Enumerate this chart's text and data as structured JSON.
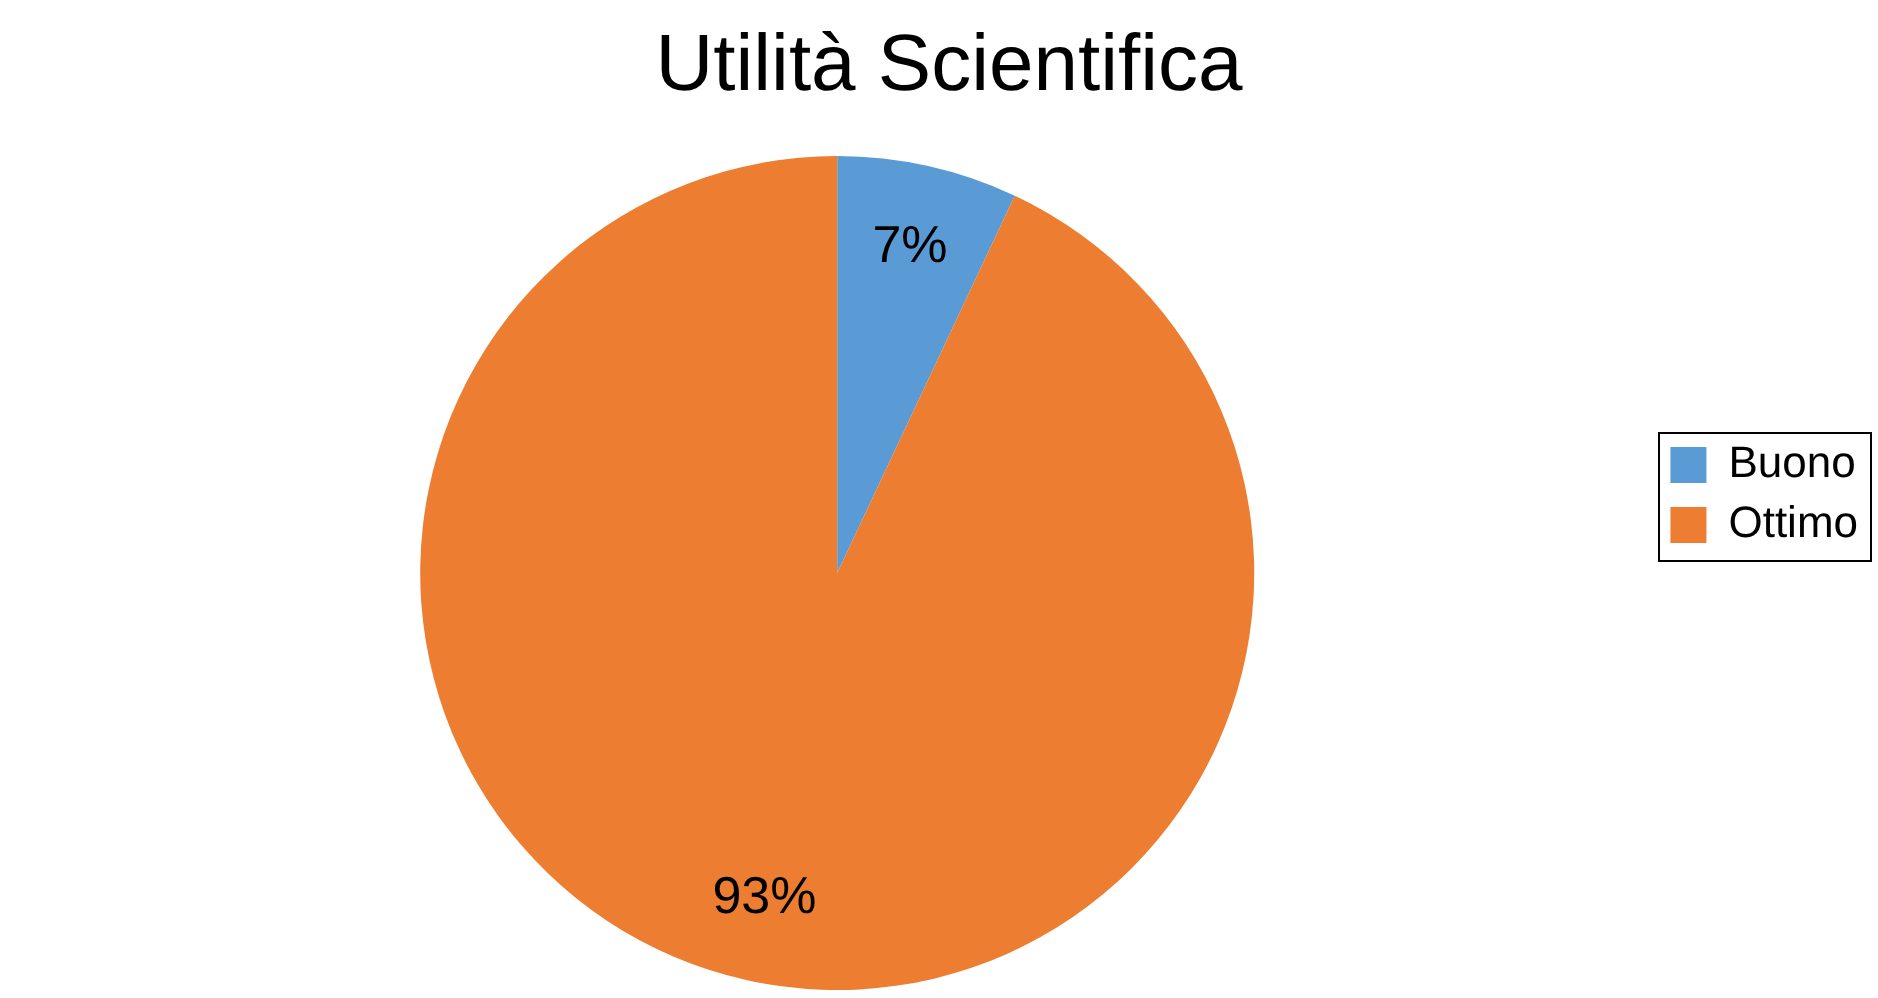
{
  "chart_data": {
    "type": "pie",
    "title": "Utilità Scientifica",
    "categories": [
      "Buono",
      "Ottimo"
    ],
    "values": [
      7,
      93
    ],
    "colors": [
      "#5b9bd5",
      "#ed7d31"
    ],
    "value_labels": [
      "7%",
      "93%"
    ],
    "legend": "right"
  }
}
